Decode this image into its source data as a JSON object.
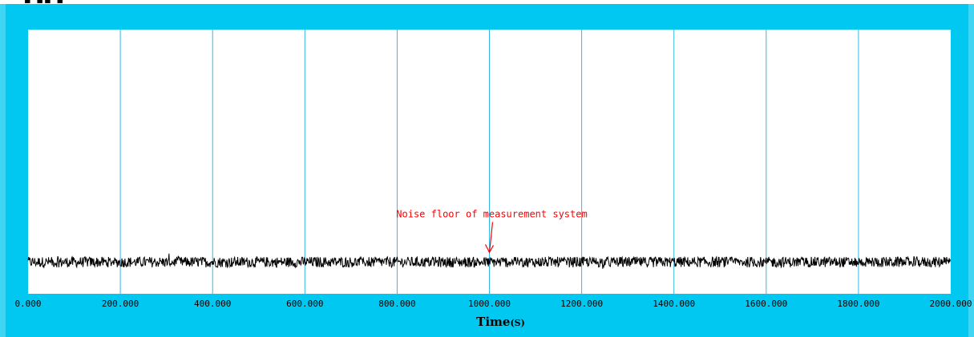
{
  "colors": {
    "frame": "#00c8f0",
    "plot_bg": "#ffffff",
    "grid": "#33b8e8",
    "signal": "#000000",
    "annotation": "#ff0000"
  },
  "chart_data": {
    "type": "line",
    "title": "",
    "xlabel": "Time",
    "xlabel_unit": "(S)",
    "ylabel": "",
    "xlim": [
      0,
      2000
    ],
    "ylim": [
      0,
      1
    ],
    "grid": true,
    "x_ticks": [
      0,
      200,
      400,
      600,
      800,
      1000,
      1200,
      1400,
      1600,
      1800,
      2000
    ],
    "x_tick_labels": [
      "0.000",
      "200.000",
      "400.000",
      "600.000",
      "800.000",
      "1000.000",
      "1200.000",
      "1400.000",
      "1600.000",
      "1800.000",
      "2000.000"
    ],
    "series": [
      {
        "baseline": 0.12,
        "noise_amplitude": 0.02,
        "x_range": [
          0,
          2000
        ]
      }
    ],
    "annotations": [
      {
        "text": "Noise floor of measurement system",
        "x": 1000,
        "y": 0.12,
        "arrow": true
      }
    ]
  }
}
